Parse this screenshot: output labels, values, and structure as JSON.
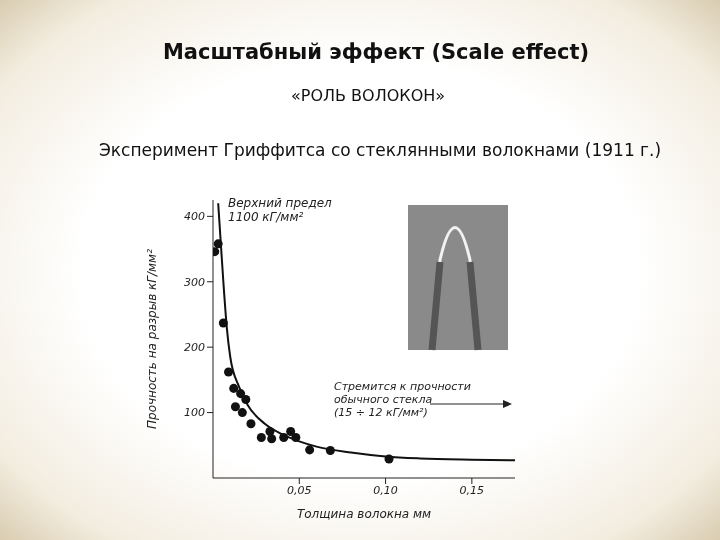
{
  "title": "Масштабный эффект (Scale effect)",
  "subtitle": "«РОЛЬ ВОЛОКОН»",
  "caption": "Эксперимент Гриффитса со стеклянными волокнами (1911 г.)",
  "chart_data": {
    "type": "scatter",
    "x_label": "Толщина волокна мм",
    "y_label": "Прочность на разрыв кГ/мм²",
    "annotations": [
      [
        "Верхний предел",
        "1100 кГ/мм²"
      ],
      [
        "Стремится к прочности",
        "обычного стекла",
        "(15 ÷ 12 кГ/мм²)"
      ]
    ],
    "xlim": [
      0,
      0.175
    ],
    "ylim": [
      0,
      425
    ],
    "xticks": [
      {
        "value": 0.05,
        "label": "0,05"
      },
      {
        "value": 0.1,
        "label": "0,10"
      },
      {
        "value": 0.15,
        "label": "0,15"
      }
    ],
    "yticks": [
      100,
      200,
      300,
      400
    ],
    "series": [
      {
        "type": "scatter",
        "color": "#111111",
        "marker": "circle",
        "x": [
          0.001,
          0.003,
          0.006,
          0.009,
          0.012,
          0.013,
          0.016,
          0.017,
          0.019,
          0.022,
          0.028,
          0.033,
          0.034,
          0.041,
          0.045,
          0.048,
          0.056,
          0.068,
          0.102
        ],
        "values": [
          346,
          358,
          237,
          162,
          137,
          109,
          129,
          100,
          120,
          83,
          62,
          71,
          60,
          62,
          71,
          62,
          43,
          42,
          29
        ]
      },
      {
        "type": "line",
        "color": "#111111",
        "line_style": "solid",
        "x": [
          0.003,
          0.004,
          0.006,
          0.008,
          0.01,
          0.015,
          0.02,
          0.03,
          0.04,
          0.05,
          0.06,
          0.08,
          0.1,
          0.12,
          0.15,
          0.175
        ],
        "values": [
          420,
          380,
          300,
          230,
          185,
          140,
          112,
          83,
          67,
          56,
          48,
          39,
          33,
          30,
          28,
          27
        ]
      }
    ]
  }
}
